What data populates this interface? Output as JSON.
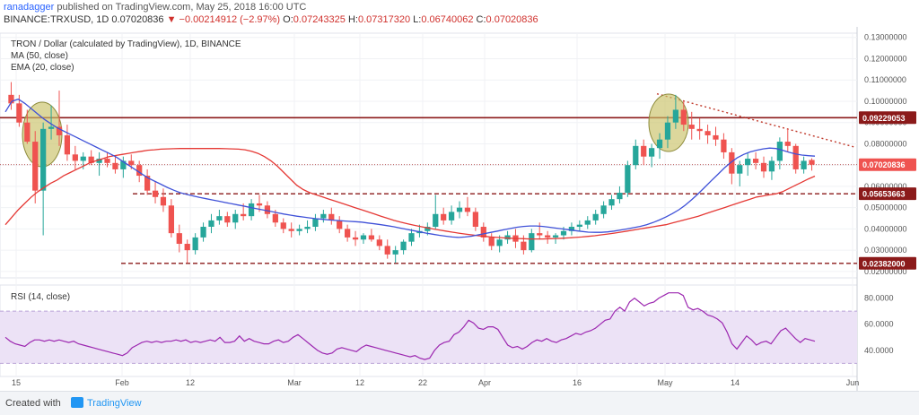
{
  "header": {
    "publisher": "ranadagger",
    "published_text": "published on TradingView.com, May 25, 2018 16:00 UTC",
    "symbol": "BINANCE:TRXUSD, 1D",
    "last": "0.07020836",
    "change": "▼ −0.00214912 (−2.97%)",
    "o_label": "O:",
    "o": "0.07243325",
    "h_label": "H:",
    "h": "0.07317320",
    "l_label": "L:",
    "l": "0.06740062",
    "c_label": "C:",
    "c": "0.07020836"
  },
  "legend": {
    "title": "TRON / Dollar (calculated by TradingView), 1D, BINANCE",
    "ma": "MA (50, close)",
    "ema": "EMA (20, close)",
    "rsi": "RSI (14, close)"
  },
  "footer": {
    "created_with": "Created with",
    "brand": "TradingView"
  },
  "colors": {
    "up": "#26a69a",
    "down": "#ef5350",
    "ma": "#e53935",
    "ema": "#3f51d8",
    "resistance": "#8b1a1a",
    "rsi": "#9c27b0",
    "rsi_band": "#ece2f6",
    "circle": "#c9c267"
  },
  "chart_data": [
    {
      "type": "candlestick",
      "title": "TRON / Dollar (calculated by TradingView), 1D, BINANCE",
      "x_ticks": [
        "15",
        "Feb",
        "12",
        "Mar",
        "12",
        "22",
        "Apr",
        "16",
        "May",
        "14",
        "Jun"
      ],
      "y_ticks": [
        "0.13000000",
        "0.12000000",
        "0.11000000",
        "0.10000000",
        "0.09000000",
        "0.08000000",
        "0.07000000",
        "0.06000000",
        "0.05000000",
        "0.04000000",
        "0.03000000",
        "0.02000000"
      ],
      "ylim": [
        0.017,
        0.132
      ],
      "last_price": 0.07020836,
      "horizontal_levels": [
        {
          "value": 0.09229053,
          "label": "0.09229053",
          "style": "solid"
        },
        {
          "value": 0.05653663,
          "label": "0.05653663",
          "style": "dashed"
        },
        {
          "value": 0.02382,
          "label": "0.02382000",
          "style": "dashed"
        }
      ],
      "trendline_start_end": [
        [
          0.1035,
          0.0785
        ]
      ],
      "series": [
        {
          "name": "MA (50, close)",
          "values": [
            0.042,
            0.0455,
            0.049,
            0.052,
            0.055,
            0.0575,
            0.0595,
            0.0615,
            0.063,
            0.065,
            0.0665,
            0.068,
            0.0695,
            0.071,
            0.072,
            0.073,
            0.074,
            0.0745,
            0.075,
            0.0755,
            0.076,
            0.0765,
            0.077,
            0.0772,
            0.0775,
            0.0776,
            0.0777,
            0.0778,
            0.0778,
            0.0778,
            0.0778,
            0.0778,
            0.0778,
            0.0778,
            0.0777,
            0.0776,
            0.0775,
            0.0772,
            0.0765,
            0.0755,
            0.074,
            0.072,
            0.0695,
            0.0665,
            0.0635,
            0.0605,
            0.0585,
            0.057,
            0.056,
            0.055,
            0.054,
            0.053,
            0.052,
            0.051,
            0.05,
            0.049,
            0.048,
            0.047,
            0.046,
            0.045,
            0.044,
            0.0432,
            0.0425,
            0.0418,
            0.0412,
            0.0406,
            0.04,
            0.0395,
            0.039,
            0.0385,
            0.038,
            0.0376,
            0.0372,
            0.0368,
            0.0365,
            0.0362,
            0.036,
            0.0358,
            0.0356,
            0.0355,
            0.0354,
            0.0353,
            0.0353,
            0.0353,
            0.0354,
            0.0355,
            0.0356,
            0.0358,
            0.036,
            0.0362,
            0.0365,
            0.0368,
            0.0372,
            0.0376,
            0.038,
            0.0385,
            0.039,
            0.0395,
            0.04,
            0.0405,
            0.041,
            0.0415,
            0.042,
            0.0428,
            0.0436,
            0.0444,
            0.0452,
            0.046,
            0.047,
            0.048,
            0.049,
            0.05,
            0.051,
            0.052,
            0.053,
            0.054,
            0.055,
            0.0555,
            0.056,
            0.0565,
            0.0575,
            0.059,
            0.0605,
            0.062,
            0.0635,
            0.0648
          ]
        },
        {
          "name": "EMA (20, close)",
          "values": [
            0.095,
            0.1,
            0.101,
            0.099,
            0.0965,
            0.094,
            0.0915,
            0.0895,
            0.0875,
            0.086,
            0.0845,
            0.083,
            0.0815,
            0.08,
            0.0785,
            0.077,
            0.0755,
            0.074,
            0.072,
            0.07,
            0.068,
            0.066,
            0.064,
            0.0625,
            0.061,
            0.0595,
            0.0582,
            0.057,
            0.0562,
            0.0555,
            0.0548,
            0.0542,
            0.0536,
            0.053,
            0.0524,
            0.0518,
            0.0512,
            0.0506,
            0.05,
            0.0494,
            0.0488,
            0.0482,
            0.0476,
            0.047,
            0.0465,
            0.046,
            0.0456,
            0.0452,
            0.0448,
            0.0445,
            0.0442,
            0.044,
            0.0438,
            0.0436,
            0.0434,
            0.0432,
            0.0428,
            0.0424,
            0.042,
            0.0415,
            0.041,
            0.0404,
            0.0398,
            0.0392,
            0.0386,
            0.038,
            0.0375,
            0.037,
            0.0366,
            0.0362,
            0.036,
            0.0362,
            0.0366,
            0.0372,
            0.0378,
            0.0384,
            0.039,
            0.0396,
            0.0402,
            0.0408,
            0.0412,
            0.0414,
            0.0414,
            0.0412,
            0.0408,
            0.0404,
            0.04,
            0.0396,
            0.0392,
            0.0388,
            0.0385,
            0.0384,
            0.0384,
            0.0386,
            0.039,
            0.0395,
            0.04,
            0.0406,
            0.0412,
            0.042,
            0.043,
            0.0442,
            0.0456,
            0.0472,
            0.049,
            0.0512,
            0.0538,
            0.0566,
            0.0596,
            0.0626,
            0.0656,
            0.0686,
            0.0712,
            0.0734,
            0.075,
            0.0762,
            0.077,
            0.0776,
            0.078,
            0.0778,
            0.077,
            0.076,
            0.0752,
            0.0747,
            0.0744,
            0.0742
          ]
        },
        {
          "name": "RSI (14, close)",
          "ylim": [
            20,
            90
          ],
          "y_ticks": [
            "80.0000",
            "60.0000",
            "40.0000"
          ],
          "band": [
            30,
            70
          ],
          "values": [
            50,
            47,
            45,
            44,
            43,
            46,
            48,
            48,
            47,
            48,
            47,
            48,
            47,
            46,
            47,
            45,
            44,
            43,
            42,
            41,
            40,
            39,
            38,
            37,
            36,
            38,
            42,
            44,
            46,
            47,
            46,
            47,
            46,
            47,
            47,
            48,
            47,
            48,
            46,
            47,
            46,
            47,
            48,
            47,
            50,
            46,
            46,
            47,
            51,
            47,
            49,
            47,
            46,
            45,
            45,
            47,
            48,
            46,
            47,
            50,
            52,
            49,
            46,
            43,
            40,
            38,
            37,
            38,
            41,
            42,
            41,
            40,
            39,
            42,
            44,
            43,
            42,
            41,
            40,
            39,
            38,
            37,
            36,
            35,
            36,
            34,
            33,
            34,
            40,
            44,
            46,
            47,
            52,
            54,
            58,
            63,
            61,
            57,
            56,
            58,
            58,
            56,
            50,
            44,
            42,
            43,
            41,
            43,
            46,
            48,
            47,
            49,
            47,
            46,
            48,
            49,
            51,
            53,
            52,
            54,
            55,
            57,
            60,
            63,
            64,
            70,
            73,
            70,
            77,
            80,
            77,
            74,
            76,
            77,
            80,
            82,
            84,
            84,
            84,
            82,
            73,
            71,
            72,
            70,
            67,
            66,
            64,
            61,
            54,
            45,
            41,
            46,
            51,
            48,
            44,
            46,
            47,
            45,
            50,
            55,
            57,
            53,
            49,
            46,
            49,
            48,
            47
          ]
        }
      ],
      "candles": [
        [
          0.103,
          0.109,
          0.096,
          0.099
        ],
        [
          0.099,
          0.103,
          0.088,
          0.09
        ],
        [
          0.09,
          0.096,
          0.08,
          0.081
        ],
        [
          0.081,
          0.086,
          0.052,
          0.058
        ],
        [
          0.058,
          0.09,
          0.037,
          0.087
        ],
        [
          0.087,
          0.098,
          0.082,
          0.088
        ],
        [
          0.088,
          0.105,
          0.079,
          0.084
        ],
        [
          0.084,
          0.089,
          0.072,
          0.075
        ],
        [
          0.075,
          0.079,
          0.068,
          0.072
        ],
        [
          0.072,
          0.076,
          0.068,
          0.074
        ],
        [
          0.074,
          0.077,
          0.07,
          0.071
        ],
        [
          0.071,
          0.076,
          0.065,
          0.073
        ],
        [
          0.073,
          0.076,
          0.069,
          0.071
        ],
        [
          0.071,
          0.074,
          0.066,
          0.068
        ],
        [
          0.068,
          0.074,
          0.064,
          0.072
        ],
        [
          0.072,
          0.075,
          0.068,
          0.07
        ],
        [
          0.07,
          0.072,
          0.062,
          0.065
        ],
        [
          0.065,
          0.068,
          0.056,
          0.058
        ],
        [
          0.058,
          0.062,
          0.052,
          0.055
        ],
        [
          0.055,
          0.059,
          0.048,
          0.051
        ],
        [
          0.051,
          0.054,
          0.036,
          0.038
        ],
        [
          0.038,
          0.042,
          0.029,
          0.033
        ],
        [
          0.033,
          0.035,
          0.024,
          0.03
        ],
        [
          0.03,
          0.038,
          0.028,
          0.036
        ],
        [
          0.036,
          0.043,
          0.034,
          0.041
        ],
        [
          0.041,
          0.047,
          0.038,
          0.044
        ],
        [
          0.044,
          0.049,
          0.042,
          0.046
        ],
        [
          0.046,
          0.048,
          0.041,
          0.043
        ],
        [
          0.043,
          0.049,
          0.04,
          0.047
        ],
        [
          0.047,
          0.052,
          0.044,
          0.046
        ],
        [
          0.046,
          0.054,
          0.044,
          0.052
        ],
        [
          0.052,
          0.056,
          0.048,
          0.051
        ],
        [
          0.051,
          0.053,
          0.045,
          0.047
        ],
        [
          0.047,
          0.049,
          0.041,
          0.043
        ],
        [
          0.043,
          0.045,
          0.038,
          0.04
        ],
        [
          0.04,
          0.043,
          0.036,
          0.039
        ],
        [
          0.039,
          0.042,
          0.037,
          0.04
        ],
        [
          0.04,
          0.044,
          0.038,
          0.041
        ],
        [
          0.041,
          0.047,
          0.039,
          0.045
        ],
        [
          0.045,
          0.049,
          0.043,
          0.047
        ],
        [
          0.047,
          0.05,
          0.042,
          0.044
        ],
        [
          0.044,
          0.046,
          0.038,
          0.04
        ],
        [
          0.04,
          0.042,
          0.034,
          0.036
        ],
        [
          0.036,
          0.039,
          0.032,
          0.035
        ],
        [
          0.035,
          0.038,
          0.033,
          0.037
        ],
        [
          0.037,
          0.04,
          0.034,
          0.035
        ],
        [
          0.035,
          0.037,
          0.03,
          0.032
        ],
        [
          0.032,
          0.035,
          0.026,
          0.028
        ],
        [
          0.028,
          0.032,
          0.024,
          0.03
        ],
        [
          0.03,
          0.035,
          0.028,
          0.034
        ],
        [
          0.034,
          0.04,
          0.032,
          0.038
        ],
        [
          0.038,
          0.042,
          0.036,
          0.039
        ],
        [
          0.039,
          0.043,
          0.037,
          0.041
        ],
        [
          0.041,
          0.056,
          0.04,
          0.047
        ],
        [
          0.047,
          0.05,
          0.042,
          0.044
        ],
        [
          0.044,
          0.051,
          0.042,
          0.048
        ],
        [
          0.048,
          0.053,
          0.045,
          0.05
        ],
        [
          0.05,
          0.055,
          0.046,
          0.048
        ],
        [
          0.048,
          0.05,
          0.039,
          0.041
        ],
        [
          0.041,
          0.043,
          0.034,
          0.036
        ],
        [
          0.036,
          0.038,
          0.03,
          0.032
        ],
        [
          0.032,
          0.037,
          0.029,
          0.035
        ],
        [
          0.035,
          0.039,
          0.033,
          0.037
        ],
        [
          0.037,
          0.04,
          0.031,
          0.034
        ],
        [
          0.034,
          0.037,
          0.028,
          0.03
        ],
        [
          0.03,
          0.04,
          0.029,
          0.038
        ],
        [
          0.038,
          0.043,
          0.035,
          0.037
        ],
        [
          0.037,
          0.039,
          0.033,
          0.036
        ],
        [
          0.036,
          0.038,
          0.033,
          0.037
        ],
        [
          0.037,
          0.041,
          0.035,
          0.039
        ],
        [
          0.039,
          0.043,
          0.037,
          0.041
        ],
        [
          0.041,
          0.044,
          0.039,
          0.042
        ],
        [
          0.042,
          0.046,
          0.04,
          0.044
        ],
        [
          0.044,
          0.049,
          0.042,
          0.047
        ],
        [
          0.047,
          0.053,
          0.045,
          0.051
        ],
        [
          0.051,
          0.056,
          0.049,
          0.054
        ],
        [
          0.054,
          0.06,
          0.052,
          0.057
        ],
        [
          0.057,
          0.072,
          0.055,
          0.07
        ],
        [
          0.07,
          0.082,
          0.068,
          0.079
        ],
        [
          0.079,
          0.082,
          0.07,
          0.074
        ],
        [
          0.074,
          0.08,
          0.069,
          0.078
        ],
        [
          0.078,
          0.085,
          0.073,
          0.082
        ],
        [
          0.082,
          0.093,
          0.078,
          0.09
        ],
        [
          0.09,
          0.103,
          0.087,
          0.096
        ],
        [
          0.096,
          0.1,
          0.086,
          0.089
        ],
        [
          0.089,
          0.095,
          0.082,
          0.087
        ],
        [
          0.087,
          0.092,
          0.082,
          0.086
        ],
        [
          0.086,
          0.089,
          0.08,
          0.084
        ],
        [
          0.084,
          0.088,
          0.079,
          0.082
        ],
        [
          0.082,
          0.085,
          0.073,
          0.076
        ],
        [
          0.076,
          0.078,
          0.061,
          0.066
        ],
        [
          0.066,
          0.072,
          0.06,
          0.07
        ],
        [
          0.07,
          0.076,
          0.065,
          0.073
        ],
        [
          0.073,
          0.076,
          0.068,
          0.071
        ],
        [
          0.071,
          0.074,
          0.064,
          0.067
        ],
        [
          0.067,
          0.074,
          0.063,
          0.072
        ],
        [
          0.072,
          0.083,
          0.068,
          0.081
        ],
        [
          0.081,
          0.087,
          0.076,
          0.079
        ],
        [
          0.079,
          0.08,
          0.066,
          0.068
        ],
        [
          0.068,
          0.074,
          0.066,
          0.072
        ],
        [
          0.0724,
          0.0732,
          0.0674,
          0.0702
        ]
      ]
    }
  ]
}
